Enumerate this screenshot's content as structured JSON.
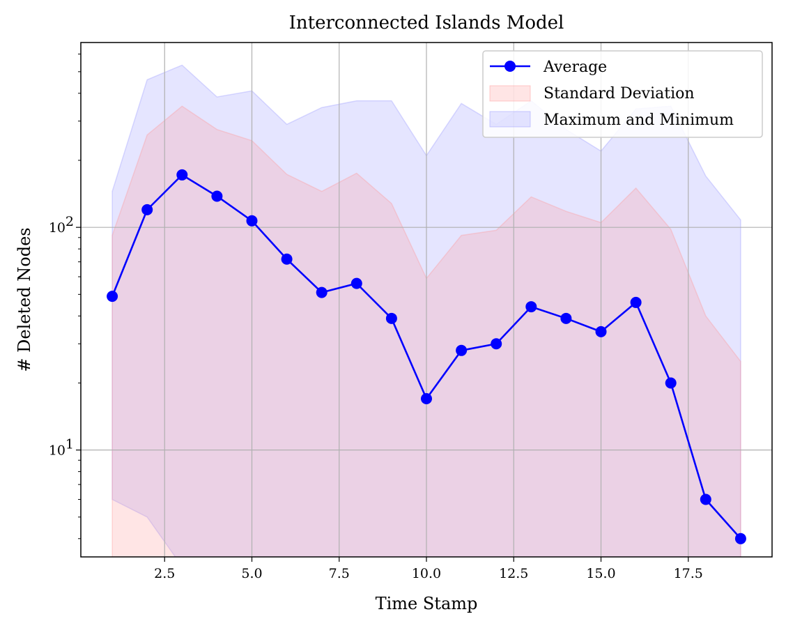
{
  "chart_data": {
    "type": "line",
    "title": "Interconnected Islands Model",
    "xlabel": "Time Stamp",
    "ylabel": "# Deleted Nodes",
    "xlim": [
      0.1,
      19.9
    ],
    "ylim_log10": [
      0.52,
      2.83
    ],
    "y_scale": "log",
    "grid": true,
    "legend_position": "top-right",
    "x_ticks": [
      2.5,
      5.0,
      7.5,
      10.0,
      12.5,
      15.0,
      17.5
    ],
    "x_tick_labels": [
      "2.5",
      "5.0",
      "7.5",
      "10.0",
      "12.5",
      "15.0",
      "17.5"
    ],
    "y_major_ticks": [
      10,
      100
    ],
    "y_tick_labels": [
      {
        "base": "10",
        "exp": "1"
      },
      {
        "base": "10",
        "exp": "2"
      }
    ],
    "y_minor_ticks": [
      4,
      5,
      6,
      7,
      8,
      9,
      20,
      30,
      40,
      50,
      60,
      70,
      80,
      90,
      200,
      300,
      400,
      500,
      600
    ],
    "colors": {
      "average": "#0000ff",
      "std_fill": "#ff9999",
      "minmax_fill": "#9999ff",
      "grid": "#b0b0b0"
    },
    "x": [
      1,
      2,
      3,
      4,
      5,
      6,
      7,
      8,
      9,
      10,
      11,
      12,
      13,
      14,
      15,
      16,
      17,
      18,
      19
    ],
    "series": [
      {
        "name": "Average",
        "values": [
          49,
          120,
          172,
          138,
          107,
          72,
          51,
          56,
          39,
          17,
          28,
          30,
          44,
          39,
          34,
          46,
          20,
          6,
          4
        ]
      }
    ],
    "bands": [
      {
        "name": "Maximum and Minimum",
        "upper": [
          145,
          460,
          535,
          385,
          410,
          290,
          345,
          370,
          370,
          210,
          360,
          290,
          370,
          275,
          220,
          340,
          350,
          170,
          108
        ],
        "lower": [
          6,
          5,
          3,
          3,
          3,
          3,
          3,
          3,
          3,
          3,
          3,
          3,
          3,
          3,
          3,
          3,
          3,
          3,
          3
        ]
      },
      {
        "name": "Standard Deviation",
        "upper": [
          92,
          260,
          350,
          275,
          245,
          173,
          145,
          175,
          128,
          59,
          92,
          97,
          137,
          118,
          105,
          150,
          98,
          40,
          25
        ],
        "lower": [
          3,
          3,
          3,
          3,
          3,
          3,
          3,
          3,
          3,
          3,
          3,
          3,
          3,
          3,
          3,
          3,
          3,
          3,
          3
        ]
      }
    ],
    "legend": [
      "Average",
      "Standard Deviation",
      "Maximum and Minimum"
    ]
  }
}
